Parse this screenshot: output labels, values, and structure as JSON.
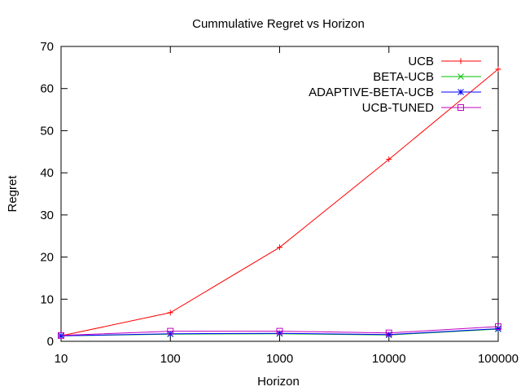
{
  "chart_data": {
    "type": "line",
    "title": "Cummulative Regret vs Horizon",
    "xlabel": "Horizon",
    "ylabel": "Regret",
    "x": [
      10,
      100,
      1000,
      10000,
      100000
    ],
    "x_scale": "log",
    "xlim": [
      10,
      100000
    ],
    "ylim": [
      0,
      70
    ],
    "x_ticks": [
      "10",
      "100",
      "1000",
      "10000",
      "100000"
    ],
    "y_ticks": [
      "0",
      "10",
      "20",
      "30",
      "40",
      "50",
      "60",
      "70"
    ],
    "grid": false,
    "legend_position": "top-right",
    "series": [
      {
        "name": "UCB",
        "marker": "plus",
        "color": "#ff0000",
        "values": [
          1.3,
          6.8,
          22.3,
          43.2,
          64.6
        ]
      },
      {
        "name": "BETA-UCB",
        "marker": "cross",
        "color": "#00c000",
        "values": [
          1.3,
          1.7,
          1.8,
          1.5,
          2.9
        ]
      },
      {
        "name": "ADAPTIVE-BETA-UCB",
        "marker": "star",
        "color": "#0000ff",
        "values": [
          1.3,
          1.8,
          1.9,
          1.6,
          3.0
        ]
      },
      {
        "name": "UCB-TUNED",
        "marker": "square",
        "color": "#c000c0",
        "values": [
          1.4,
          2.4,
          2.4,
          2.0,
          3.5
        ]
      }
    ]
  }
}
